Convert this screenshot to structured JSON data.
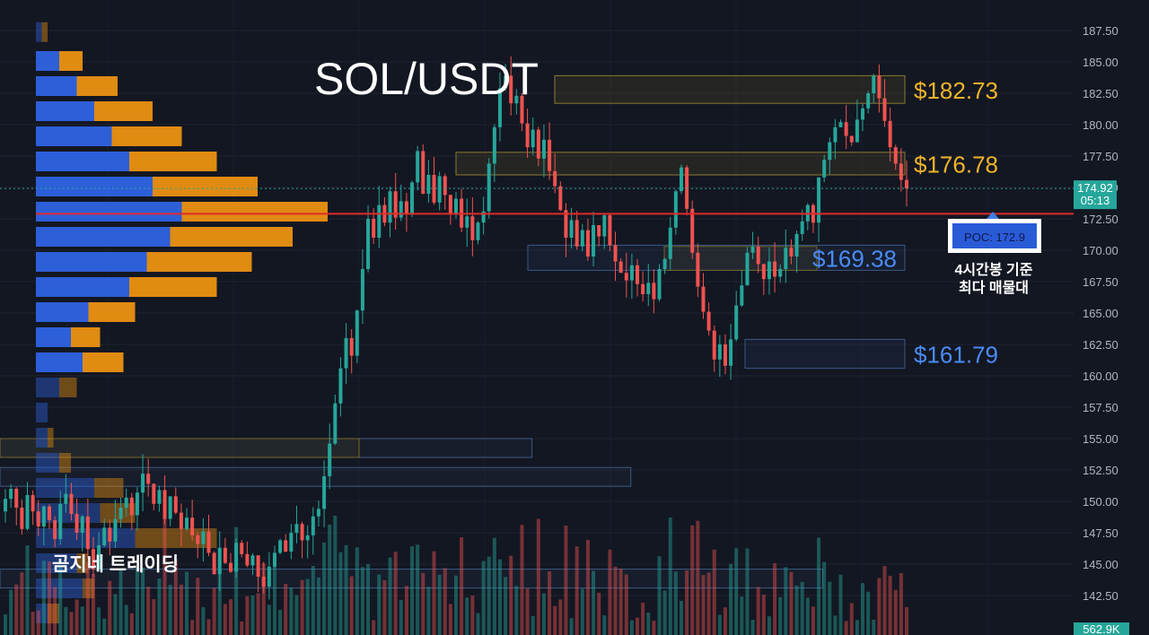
{
  "chart_data": {
    "type": "candlestick",
    "title": "SOL/USDT",
    "watermark": "곰지네 트레이딩",
    "y_axis": {
      "min": 140,
      "max": 190,
      "ticks": [
        "187.50",
        "185.00",
        "182.50",
        "180.00",
        "177.50",
        "175.00",
        "172.50",
        "170.00",
        "167.50",
        "165.00",
        "162.50",
        "160.00",
        "157.50",
        "155.00",
        "152.50",
        "150.00",
        "147.50",
        "145.00",
        "142.50"
      ],
      "grid": true
    },
    "last_price": {
      "value": "174.92",
      "countdown": "05:13",
      "price": 174.92
    },
    "volume_label": "562.9K",
    "poc": {
      "label": "POC: 172.9",
      "price": 172.9,
      "note_line1": "4시간봉 기준",
      "note_line2": "최다 매물대"
    },
    "levels": [
      {
        "label": "$182.73",
        "kind": "resistance",
        "color": "#f0b429",
        "top": 183.9,
        "bottom": 181.7,
        "t_start": 0.0,
        "t_end": 0.42
      },
      {
        "label": "$176.78",
        "kind": "resistance",
        "color": "#f0b429",
        "top": 177.8,
        "bottom": 176.0,
        "t_start": 0.0,
        "t_end": 0.42
      },
      {
        "label": "$169.38",
        "kind": "support",
        "color": "#4a8cf7",
        "top": 170.4,
        "bottom": 168.4,
        "t_start": 0.0,
        "t_end": 0.42
      },
      {
        "label": "$161.79",
        "kind": "support",
        "color": "#4a8cf7",
        "top": 162.9,
        "bottom": 160.6,
        "t_start": 0.0,
        "t_end": 0.42
      }
    ],
    "zones": [
      {
        "top": 155.0,
        "bottom": 153.5,
        "x_end_frac": 0.463
      },
      {
        "top": 152.7,
        "bottom": 151.2,
        "x_end_frac": 0.549
      },
      {
        "top": 144.6,
        "bottom": 143.1,
        "x_end_frac": 0.716
      }
    ],
    "volume_profile": [
      {
        "price": 187.3,
        "buy": 5,
        "sell": 5
      },
      {
        "price": 185.0,
        "buy": 20,
        "sell": 20
      },
      {
        "price": 183.0,
        "buy": 35,
        "sell": 35
      },
      {
        "price": 181.0,
        "buy": 50,
        "sell": 50
      },
      {
        "price": 179.0,
        "buy": 65,
        "sell": 60
      },
      {
        "price": 177.0,
        "buy": 80,
        "sell": 75
      },
      {
        "price": 175.0,
        "buy": 100,
        "sell": 90
      },
      {
        "price": 173.0,
        "buy": 125,
        "sell": 125
      },
      {
        "price": 171.0,
        "buy": 115,
        "sell": 105
      },
      {
        "price": 169.0,
        "buy": 95,
        "sell": 90
      },
      {
        "price": 167.0,
        "buy": 80,
        "sell": 75
      },
      {
        "price": 165.0,
        "buy": 45,
        "sell": 40
      },
      {
        "price": 163.0,
        "buy": 30,
        "sell": 25
      },
      {
        "price": 161.0,
        "buy": 40,
        "sell": 35
      },
      {
        "price": 159.0,
        "buy": 20,
        "sell": 15
      },
      {
        "price": 157.0,
        "buy": 10,
        "sell": 0
      },
      {
        "price": 155.0,
        "buy": 10,
        "sell": 5
      },
      {
        "price": 153.0,
        "buy": 20,
        "sell": 10
      },
      {
        "price": 151.0,
        "buy": 50,
        "sell": 25
      },
      {
        "price": 149.0,
        "buy": 55,
        "sell": 30
      },
      {
        "price": 147.0,
        "buy": 85,
        "sell": 70
      },
      {
        "price": 145.0,
        "buy": 35,
        "sell": 10
      },
      {
        "price": 143.0,
        "buy": 40,
        "sell": 10
      },
      {
        "price": 141.0,
        "buy": 10,
        "sell": 10
      }
    ],
    "series_close": [
      150.2,
      151,
      149.5,
      147.8,
      150.5,
      149.2,
      148,
      149.6,
      148.5,
      147,
      149.8,
      150.6,
      149,
      147.5,
      148.8,
      146.2,
      144.6,
      146.5,
      147.9,
      146.8,
      148.6,
      149.5,
      150.3,
      148.9,
      150.7,
      152.2,
      151.4,
      149.8,
      150.9,
      148.6,
      150.4,
      149.1,
      147.8,
      148.7,
      147.3,
      146.6,
      147.6,
      145.9,
      144.2,
      146.3,
      145.1,
      144.4,
      146.7,
      145.8,
      144.9,
      145.7,
      144,
      143.2,
      144.8,
      145.9,
      146.9,
      146,
      147.5,
      148.2,
      146.9,
      147.3,
      148.8,
      149.4,
      152,
      154.6,
      157.8,
      160.6,
      163,
      161.6,
      165.2,
      168.5,
      172.5,
      171,
      173.6,
      172.2,
      174.7,
      172.6,
      173.9,
      172.9,
      175.4,
      177.9,
      174.5,
      176,
      173.8,
      175.9,
      174.4,
      172.9,
      174.1,
      171.8,
      172.7,
      170.8,
      172.2,
      173.1,
      176.9,
      179.8,
      182.9,
      183.9,
      181.7,
      182.3,
      180.1,
      178.2,
      179.6,
      177.3,
      178.8,
      176.3,
      175.1,
      173.2,
      171,
      172.4,
      170.3,
      171.6,
      169.5,
      172,
      171.1,
      172.8,
      170.4,
      169.1,
      168.2,
      167.6,
      168.8,
      167.3,
      166.5,
      167.4,
      166.1,
      168.5,
      169.3,
      171.8,
      174.7,
      176.6,
      173.3,
      169.8,
      167.1,
      165.1,
      163.6,
      161.3,
      162.5,
      160.8,
      162.9,
      165.6,
      167.2,
      169.8,
      170.3,
      168.9,
      167.7,
      169.1,
      167.9,
      168.5,
      170.2,
      169.5,
      171.3,
      172.3,
      173.6,
      172.2,
      175.8,
      177.2,
      178.6,
      179.8,
      180.2,
      179.1,
      178.6,
      180.4,
      181.3,
      182.5,
      183.9,
      182.1,
      180.3,
      178.2,
      176.9,
      175.6,
      174.92
    ]
  }
}
